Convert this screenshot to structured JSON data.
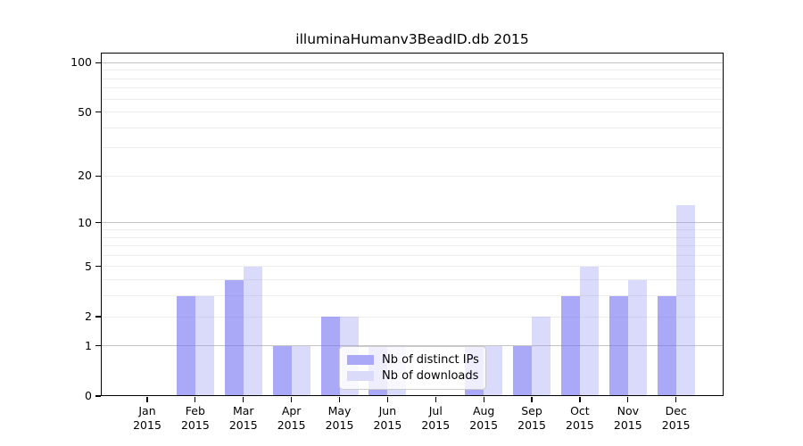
{
  "title": "illuminaHumanv3BeadID.db 2015",
  "chart_data": {
    "type": "bar",
    "title": "illuminaHumanv3BeadID.db 2015",
    "categories": [
      "Jan 2015",
      "Feb 2015",
      "Mar 2015",
      "Apr 2015",
      "May 2015",
      "Jun 2015",
      "Jul 2015",
      "Aug 2015",
      "Sep 2015",
      "Oct 2015",
      "Nov 2015",
      "Dec 2015"
    ],
    "x_tick_months": [
      "Jan",
      "Feb",
      "Mar",
      "Apr",
      "May",
      "Jun",
      "Jul",
      "Aug",
      "Sep",
      "Oct",
      "Nov",
      "Dec"
    ],
    "x_tick_year": "2015",
    "series": [
      {
        "name": "Nb of distinct IPs",
        "color": "#a9a9f7",
        "fill": "rgba(112,112,242,0.6)",
        "values": [
          0,
          3,
          4,
          1,
          2,
          1,
          0,
          1,
          1,
          3,
          3,
          3
        ]
      },
      {
        "name": "Nb of downloads",
        "color": "#dadaf9",
        "fill": "rgba(149,149,241,0.35)",
        "values": [
          0,
          3,
          5,
          1,
          2,
          1,
          0,
          1,
          2,
          5,
          4,
          13
        ]
      }
    ],
    "y_axis": {
      "scale": "log1p",
      "tick_labels": [
        "0",
        "1",
        "2",
        "5",
        "10",
        "20",
        "50",
        "100"
      ],
      "ticks": [
        0,
        1,
        2,
        5,
        10,
        20,
        50,
        100
      ],
      "major_gridlines": [
        1,
        10,
        100
      ],
      "minor_gridlines": [
        2,
        3,
        4,
        5,
        6,
        7,
        8,
        9,
        20,
        30,
        40,
        50,
        60,
        70,
        80,
        90
      ],
      "ylim": [
        0,
        120
      ]
    },
    "legend": {
      "position": "bottom-center",
      "entries": [
        "Nb of distinct IPs",
        "Nb of downloads"
      ]
    },
    "grid": true,
    "colors": {
      "major_grid": "#c4c4c4",
      "minor_grid": "#ededed",
      "spine": "#000000",
      "background": "#ffffff"
    }
  }
}
